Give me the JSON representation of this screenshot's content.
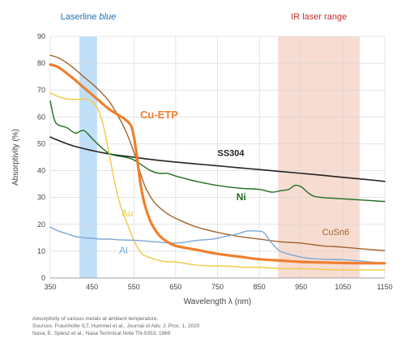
{
  "chart_data": {
    "type": "line",
    "title": "",
    "xlabel": "Wavelength λ (nm)",
    "ylabel": "Absorptivity (%)",
    "xlim": [
      350,
      1150
    ],
    "ylim": [
      0,
      90
    ],
    "xticks": [
      "350",
      "450",
      "550",
      "650",
      "750",
      "850",
      "950",
      "1050",
      "1150"
    ],
    "yticks": [
      "0",
      "10",
      "20",
      "30",
      "40",
      "50",
      "60",
      "70",
      "80",
      "90"
    ],
    "grid": true,
    "bands": [
      {
        "label": "Laserline ",
        "label_em": "blue",
        "range": [
          420,
          462
        ],
        "color": "#bfe0f8",
        "label_color": "#1e6fb0"
      },
      {
        "label": "IR laser range",
        "label_em": "",
        "range": [
          895,
          1090
        ],
        "color": "#f7dcd2",
        "label_color": "#c0302b"
      }
    ],
    "series": [
      {
        "name": "SS304",
        "color": "#222222",
        "width": 1.6,
        "x": [
          350,
          400,
          450,
          500,
          550,
          600,
          650,
          700,
          750,
          800,
          850,
          900,
          950,
          1000,
          1050,
          1100,
          1150
        ],
        "y": [
          52.5,
          49.5,
          47.5,
          46,
          45,
          44,
          43.2,
          42.5,
          41.8,
          41.1,
          40.4,
          39.7,
          39,
          38.3,
          37.5,
          36.8,
          36
        ]
      },
      {
        "name": "Ni",
        "color": "#1f6e1f",
        "width": 1.4,
        "x": [
          350,
          360,
          370,
          390,
          410,
          430,
          450,
          470,
          490,
          510,
          530,
          550,
          570,
          590,
          610,
          630,
          650,
          700,
          750,
          800,
          850,
          880,
          900,
          920,
          935,
          950,
          965,
          980,
          1000,
          1050,
          1100,
          1150
        ],
        "y": [
          66,
          59,
          57,
          56,
          54,
          55,
          52,
          49,
          46.5,
          45.5,
          45,
          44,
          42,
          40,
          39,
          39,
          38,
          36,
          34.5,
          33.5,
          33,
          32,
          32.5,
          33,
          34.5,
          34,
          32,
          30.5,
          30,
          29.5,
          29,
          28.5
        ]
      },
      {
        "name": "CuSn6",
        "color": "#a3652c",
        "width": 1.4,
        "x": [
          350,
          370,
          400,
          430,
          460,
          490,
          510,
          530,
          550,
          560,
          570,
          580,
          600,
          630,
          660,
          700,
          750,
          800,
          850,
          900,
          950,
          1000,
          1050,
          1100,
          1150
        ],
        "y": [
          83,
          82,
          79,
          75,
          71,
          66,
          61,
          55,
          47,
          42,
          37,
          33,
          28,
          24,
          21.5,
          19,
          17,
          15.5,
          14.5,
          13.5,
          13,
          12,
          11.5,
          10.8,
          10.2
        ]
      },
      {
        "name": "Cu-ETP",
        "color": "#f07f2e",
        "width": 3.2,
        "x": [
          350,
          370,
          400,
          430,
          460,
          490,
          510,
          530,
          545,
          555,
          565,
          575,
          590,
          610,
          630,
          650,
          700,
          750,
          800,
          850,
          900,
          950,
          1000,
          1050,
          1100,
          1150
        ],
        "y": [
          79.5,
          78.5,
          75,
          71,
          67,
          63,
          61,
          59,
          56,
          48,
          36,
          28,
          21,
          16,
          13.5,
          12,
          10.5,
          9,
          8,
          7,
          6.5,
          6,
          5.8,
          5.6,
          5.5,
          5.5
        ]
      },
      {
        "name": "Au",
        "color": "#f1cc4d",
        "width": 1.5,
        "x": [
          350,
          380,
          410,
          440,
          460,
          475,
          490,
          505,
          520,
          535,
          550,
          570,
          600,
          630,
          650,
          690,
          730,
          770,
          810,
          850,
          900,
          950,
          1000,
          1050,
          1100,
          1150
        ],
        "y": [
          69,
          67,
          66.5,
          66.5,
          64,
          58,
          47,
          35,
          26,
          20,
          14,
          9,
          7,
          6,
          6,
          5,
          4.5,
          4.5,
          4,
          4,
          3.5,
          3.5,
          3.2,
          3,
          3,
          3
        ]
      },
      {
        "name": "Al",
        "color": "#7ea6d4",
        "width": 1.4,
        "x": [
          350,
          370,
          390,
          410,
          430,
          450,
          470,
          490,
          520,
          560,
          600,
          650,
          700,
          740,
          770,
          800,
          820,
          840,
          860,
          880,
          900,
          930,
          960,
          1000,
          1050,
          1100,
          1150
        ],
        "y": [
          19,
          17.5,
          16.5,
          15.5,
          15,
          14.8,
          14.5,
          14.5,
          14.2,
          14,
          13.5,
          13,
          14,
          14.5,
          15.5,
          16.5,
          17.5,
          17.5,
          17,
          13,
          10,
          8.5,
          7.5,
          7,
          6.8,
          6.2,
          5.5
        ]
      }
    ],
    "labels": [
      {
        "text": "Cu-ETP",
        "x": 565,
        "y": 59.5,
        "color": "#f07f2e",
        "size": 13,
        "weight": "bold"
      },
      {
        "text": "SS304",
        "x": 750,
        "y": 45.5,
        "color": "#222222",
        "size": 11,
        "weight": "bold"
      },
      {
        "text": "Ni",
        "x": 795,
        "y": 29,
        "color": "#1f6e1f",
        "size": 12,
        "weight": "bold"
      },
      {
        "text": "CuSn6",
        "x": 1000,
        "y": 16,
        "color": "#a3652c",
        "size": 11,
        "weight": "normal"
      },
      {
        "text": "Au",
        "x": 520,
        "y": 23,
        "color": "#f1cc4d",
        "size": 12,
        "weight": "normal"
      },
      {
        "text": "Al",
        "x": 515,
        "y": 9,
        "color": "#7ea6d4",
        "size": 12,
        "weight": "normal"
      }
    ]
  },
  "caption": {
    "line1": "Absorptivity of various metals at ambient temperature.",
    "line2": "Sources: Fraunhofer ILT, Hummel et al., Journal of Adv. J. Proc. 1, 2020",
    "line3": "Nasa, E. Spiesz et al., Nasa Technical Note TN-5353, 1969"
  }
}
